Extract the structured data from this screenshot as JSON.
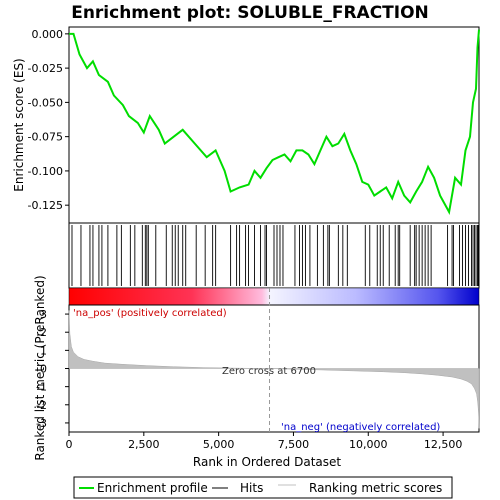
{
  "chart_data": {
    "type": "line",
    "title": "Enrichment plot: SOLUBLE_FRACTION",
    "x_max": 13700,
    "x_ticks": [
      0,
      2500,
      5000,
      7500,
      10000,
      12500
    ],
    "x_tick_labels": [
      "0",
      "2,500",
      "5,000",
      "7,500",
      "10,000",
      "12,500"
    ],
    "xlabel": "Rank in Ordered Dataset",
    "top_panel": {
      "ylabel": "Enrichment score (ES)",
      "ylim": [
        -0.138,
        0.005
      ],
      "y_ticks": [
        0.0,
        -0.025,
        -0.05,
        -0.075,
        -0.1,
        -0.125
      ],
      "y_tick_labels": [
        "0.000",
        "-0.025",
        "-0.050",
        "-0.075",
        "-0.100",
        "-0.125"
      ],
      "series_name": "Enrichment profile",
      "color": "#00dd00",
      "x": [
        0,
        150,
        350,
        600,
        800,
        1000,
        1300,
        1500,
        1800,
        2000,
        2300,
        2500,
        2700,
        3000,
        3200,
        3500,
        3800,
        4200,
        4600,
        4900,
        5200,
        5400,
        5700,
        6000,
        6200,
        6400,
        6600,
        6800,
        7000,
        7200,
        7400,
        7600,
        7800,
        8000,
        8200,
        8400,
        8600,
        8800,
        9000,
        9200,
        9400,
        9600,
        9800,
        10000,
        10200,
        10400,
        10600,
        10800,
        11000,
        11200,
        11400,
        11600,
        11800,
        12000,
        12200,
        12400,
        12700,
        12900,
        13100,
        13250,
        13400,
        13500,
        13600,
        13650,
        13700
      ],
      "y": [
        0.0,
        0.0,
        -0.015,
        -0.025,
        -0.02,
        -0.03,
        -0.035,
        -0.045,
        -0.052,
        -0.06,
        -0.065,
        -0.072,
        -0.06,
        -0.07,
        -0.08,
        -0.075,
        -0.07,
        -0.08,
        -0.09,
        -0.085,
        -0.1,
        -0.115,
        -0.112,
        -0.11,
        -0.1,
        -0.105,
        -0.098,
        -0.092,
        -0.09,
        -0.088,
        -0.093,
        -0.085,
        -0.085,
        -0.088,
        -0.095,
        -0.085,
        -0.075,
        -0.082,
        -0.08,
        -0.073,
        -0.085,
        -0.095,
        -0.108,
        -0.11,
        -0.118,
        -0.115,
        -0.112,
        -0.12,
        -0.108,
        -0.118,
        -0.123,
        -0.115,
        -0.108,
        -0.097,
        -0.105,
        -0.118,
        -0.13,
        -0.105,
        -0.11,
        -0.085,
        -0.075,
        -0.05,
        -0.04,
        -0.01,
        0.003
      ]
    },
    "hits_panel": {
      "series_name": "Hits",
      "hit_ranks": [
        100,
        400,
        700,
        800,
        1000,
        1100,
        1300,
        1600,
        1750,
        2050,
        2200,
        2450,
        2550,
        2600,
        2650,
        2900,
        3250,
        3450,
        3550,
        3650,
        3800,
        3900,
        4250,
        4550,
        4800,
        4900,
        5400,
        5600,
        5700,
        5900,
        6000,
        6200,
        6400,
        6550,
        6600,
        6850,
        6950,
        7050,
        7150,
        7550,
        7700,
        7800,
        7900,
        8050,
        8300,
        8500,
        8650,
        8700,
        9000,
        9150,
        9300,
        9900,
        10050,
        10300,
        10400,
        10500,
        10700,
        10900,
        11000,
        11050,
        11400,
        11550,
        11600,
        11700,
        11800,
        11900,
        12000,
        12100,
        12650,
        12800,
        12850,
        13050,
        13150,
        13250,
        13350,
        13450,
        13500,
        13550,
        13600,
        13650,
        13680
      ]
    },
    "bottom_panel": {
      "ylabel": "Ranked list metric (PreRanked)",
      "ylim": [
        -3.5,
        3.5
      ],
      "y_ticks": [
        3,
        2,
        1,
        0,
        -1,
        -2,
        -3
      ],
      "y_tick_labels": [
        "3",
        "2",
        "1",
        "0",
        "-1",
        "-2",
        "-3"
      ],
      "series_name": "Ranking metric scores",
      "x": [
        0,
        30,
        80,
        150,
        300,
        500,
        800,
        1200,
        1800,
        2600,
        3500,
        4500,
        5500,
        6700,
        7500,
        8500,
        9500,
        10500,
        11200,
        11800,
        12300,
        12800,
        13100,
        13300,
        13450,
        13550,
        13620,
        13660,
        13690,
        13700
      ],
      "y": [
        3.2,
        1.9,
        1.2,
        0.9,
        0.65,
        0.5,
        0.4,
        0.3,
        0.23,
        0.16,
        0.1,
        0.05,
        0.02,
        0.0,
        -0.04,
        -0.08,
        -0.13,
        -0.18,
        -0.23,
        -0.3,
        -0.37,
        -0.47,
        -0.58,
        -0.7,
        -0.85,
        -1.1,
        -1.4,
        -1.9,
        -2.6,
        -3.3
      ],
      "zero_cross_rank": 6700,
      "zero_cross_label": "Zero cross at 6700",
      "pos_label": "'na_pos' (positively correlated)",
      "neg_label": "'na_neg' (negatively correlated)",
      "pos_color": "#cc0000",
      "neg_color": "#0000cc"
    },
    "legend": {
      "items": [
        {
          "label": "Enrichment profile",
          "color": "#00dd00"
        },
        {
          "label": "Hits",
          "color": "#000000"
        },
        {
          "label": "Ranking metric scores",
          "color": "#c0c0c0"
        }
      ],
      "placement": "bottom"
    }
  }
}
